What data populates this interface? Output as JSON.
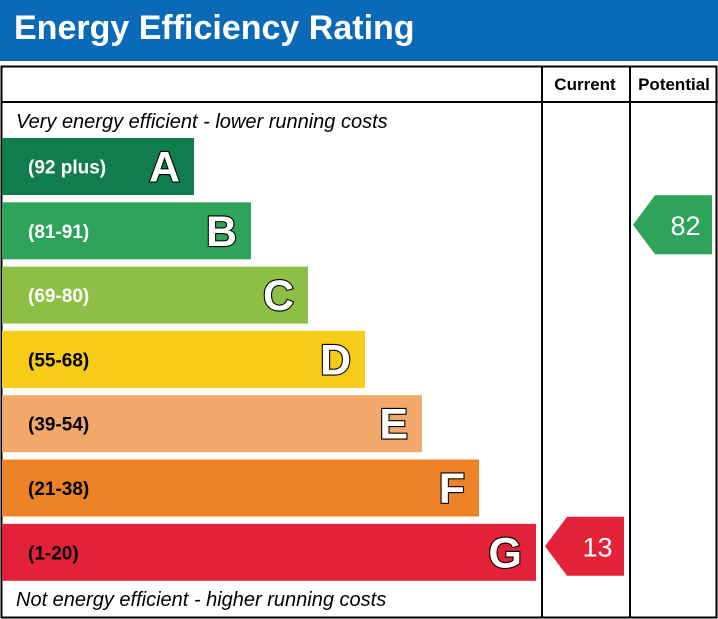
{
  "title": "Energy Efficiency Rating",
  "columns": {
    "current": "Current",
    "potential": "Potential"
  },
  "captions": {
    "top": "Very energy efficient - lower running costs",
    "bottom": "Not energy efficient - higher running costs"
  },
  "colors": {
    "header": "#0b6ab8",
    "bands": [
      "#117d4d",
      "#2da45a",
      "#8dbf44",
      "#f6cc17",
      "#f2a86a",
      "#ed8227",
      "#e32139"
    ]
  },
  "chart_data": {
    "type": "bar",
    "bands": [
      {
        "letter": "A",
        "range": "(92 plus)",
        "min": 92,
        "max": 100
      },
      {
        "letter": "B",
        "range": "(81-91)",
        "min": 81,
        "max": 91
      },
      {
        "letter": "C",
        "range": "(69-80)",
        "min": 69,
        "max": 80
      },
      {
        "letter": "D",
        "range": "(55-68)",
        "min": 55,
        "max": 68
      },
      {
        "letter": "E",
        "range": "(39-54)",
        "min": 39,
        "max": 54
      },
      {
        "letter": "F",
        "range": "(21-38)",
        "min": 21,
        "max": 38
      },
      {
        "letter": "G",
        "range": "(1-20)",
        "min": 1,
        "max": 20
      }
    ],
    "current": {
      "value": 13,
      "band": "G"
    },
    "potential": {
      "value": 82,
      "band": "B"
    }
  }
}
